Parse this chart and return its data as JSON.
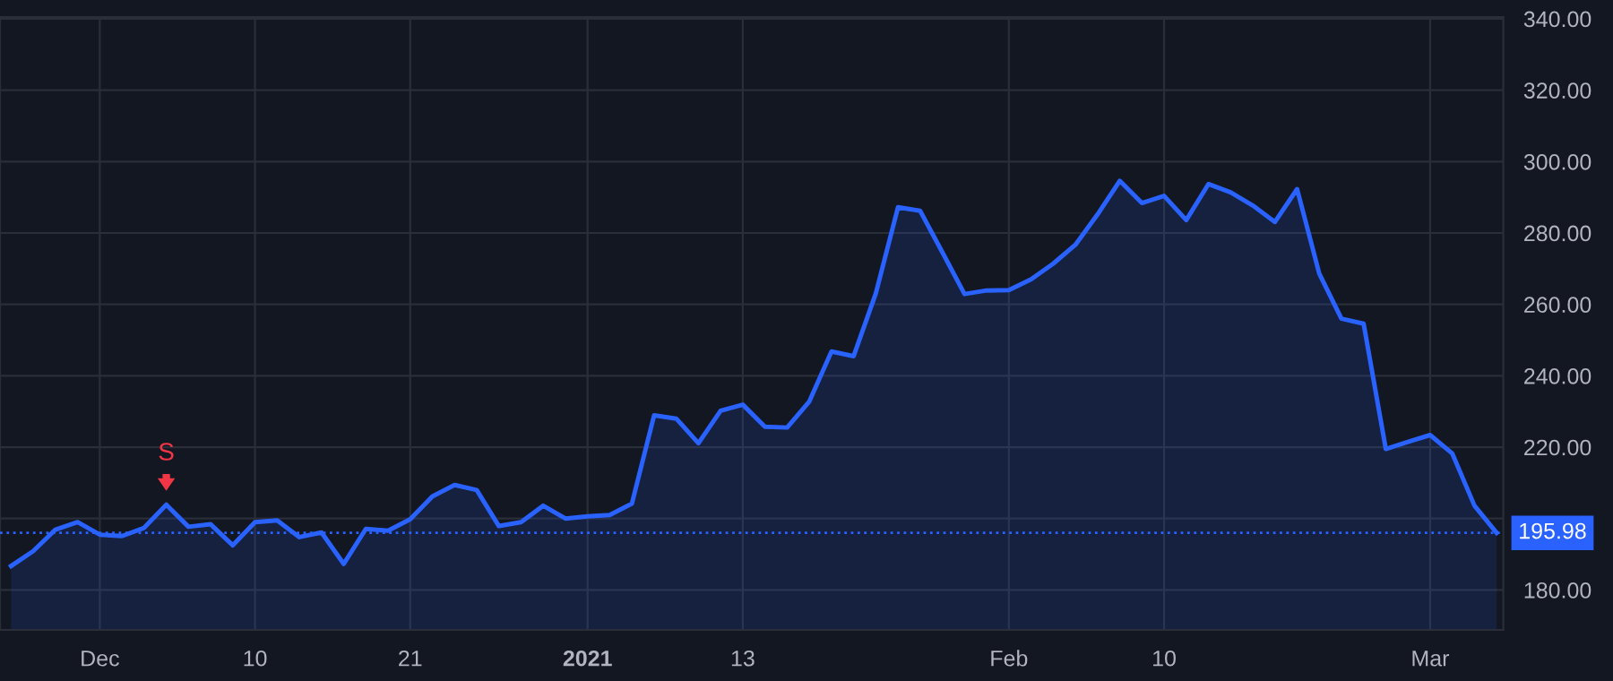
{
  "chart_data": {
    "type": "area",
    "categories": [
      null,
      null,
      null,
      null,
      "Dec",
      null,
      null,
      null,
      null,
      null,
      null,
      "10",
      null,
      null,
      null,
      null,
      null,
      null,
      "21",
      null,
      null,
      null,
      null,
      null,
      null,
      null,
      "2021",
      null,
      null,
      null,
      null,
      null,
      null,
      "13",
      null,
      null,
      null,
      null,
      null,
      null,
      null,
      null,
      null,
      null,
      null,
      "Feb",
      null,
      null,
      null,
      null,
      null,
      null,
      "10",
      null,
      null,
      null,
      null,
      null,
      null,
      null,
      null,
      null,
      null,
      null,
      "Mar",
      null,
      null,
      null
    ],
    "series": [
      {
        "color": "#2962ff",
        "values": [
          186.7,
          190.9,
          196.9,
          199.0,
          195.5,
          195.1,
          197.4,
          203.9,
          197.7,
          198.4,
          192.5,
          199.0,
          199.5,
          194.8,
          196.1,
          187.3,
          197.1,
          196.6,
          199.8,
          206.2,
          209.4,
          208.0,
          197.9,
          199.0,
          203.6,
          200.0,
          200.6,
          201.0,
          204.2,
          228.9,
          228.0,
          221.1,
          230.2,
          231.9,
          225.7,
          225.5,
          232.8,
          246.8,
          245.5,
          263.1,
          287.2,
          286.2,
          274.6,
          262.9,
          263.9,
          264.0,
          267.0,
          271.4,
          276.7,
          285.2,
          294.6,
          288.4,
          290.4,
          283.6,
          293.7,
          291.4,
          287.7,
          283.1,
          292.3,
          268.6,
          256.0,
          254.6,
          219.5,
          221.5,
          223.4,
          218.2,
          203.6,
          196.0
        ]
      }
    ],
    "ylim": [
      168.8,
      340.5
    ],
    "yticks": [
      {
        "value": 180,
        "label": "180.00"
      },
      {
        "value": 200,
        "label": null
      },
      {
        "value": 220,
        "label": "220.00"
      },
      {
        "value": 240,
        "label": "240.00"
      },
      {
        "value": 260,
        "label": "260.00"
      },
      {
        "value": 280,
        "label": "280.00"
      },
      {
        "value": 300,
        "label": "300.00"
      },
      {
        "value": 320,
        "label": "320.00"
      },
      {
        "value": 340,
        "label": "340.00"
      }
    ],
    "ref_lines": [
      {
        "axis": "y",
        "value": 195.98,
        "label": "195.98",
        "color": "#2962ff",
        "line_style": "dotted"
      }
    ],
    "annotations": [
      {
        "text": "S",
        "y": 203.9
      }
    ],
    "grid": true,
    "marker": "none",
    "line_style": "solid"
  }
}
